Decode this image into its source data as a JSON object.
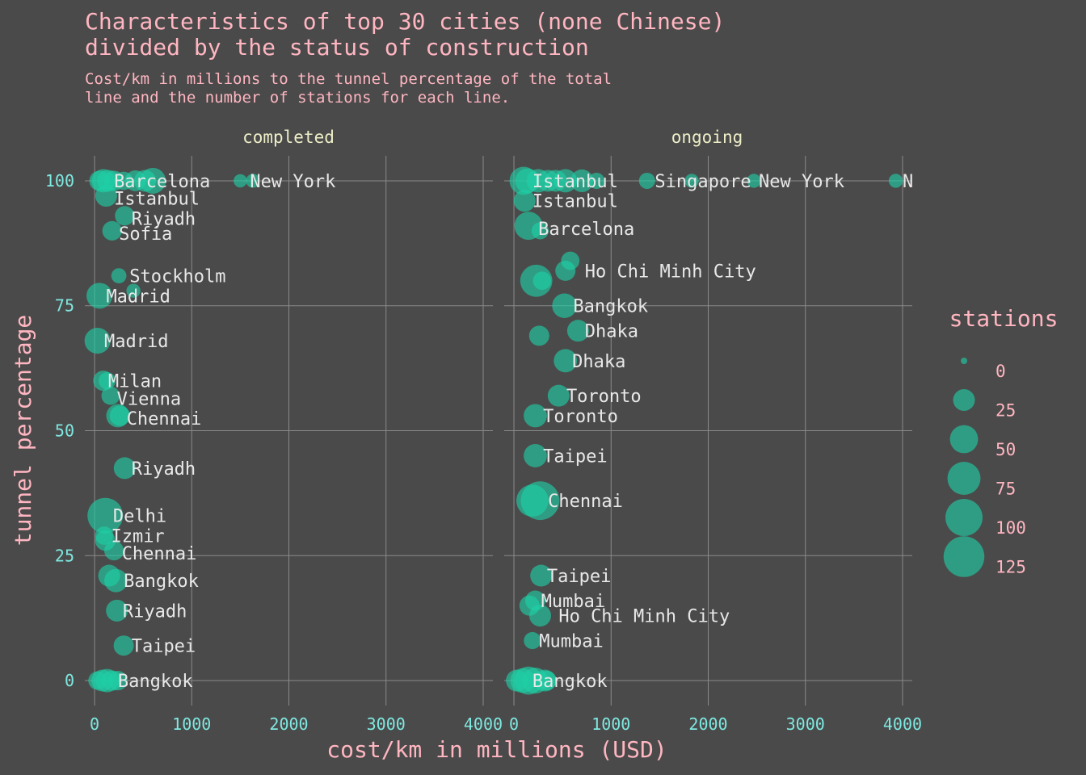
{
  "chart_data": {
    "type": "scatter",
    "title": "Characteristics of top 30 cities (none Chinese) divided by the status of construction",
    "title_lines": [
      "Characteristics of top 30 cities (none Chinese)",
      "divided by the status of construction"
    ],
    "subtitle_lines": [
      "Cost/km in millions to the tunnel percentage of the total",
      "line and the number of stations for each line."
    ],
    "xlabel": "cost/km in millions (USD)",
    "ylabel": "tunnel percentage",
    "xlim": [
      -100,
      4100
    ],
    "ylim": [
      -5,
      105
    ],
    "x_ticks": [
      0,
      1000,
      2000,
      3000,
      4000
    ],
    "y_ticks": [
      0,
      25,
      50,
      75,
      100
    ],
    "grid": true,
    "legend": {
      "title": "stations",
      "position": "right",
      "values": [
        0,
        25,
        50,
        75,
        100,
        125
      ]
    },
    "point_color": "#1fd1a6",
    "panels": [
      {
        "name": "completed",
        "points": [
          {
            "x": 50,
            "y": 100,
            "s": 20
          },
          {
            "x": 90,
            "y": 100,
            "s": 30
          },
          {
            "x": 140,
            "y": 100,
            "s": 25
          },
          {
            "x": 200,
            "y": 100,
            "s": 20
          },
          {
            "x": 300,
            "y": 100,
            "s": 15
          },
          {
            "x": 420,
            "y": 100,
            "s": 22
          },
          {
            "x": 520,
            "y": 100,
            "s": 25
          },
          {
            "x": 600,
            "y": 100,
            "s": 40
          },
          {
            "x": 1500,
            "y": 100,
            "s": 5
          },
          {
            "x": 1630,
            "y": 100,
            "s": 6
          },
          {
            "x": 120,
            "y": 97,
            "s": 25
          },
          {
            "x": 310,
            "y": 93,
            "s": 18
          },
          {
            "x": 180,
            "y": 90,
            "s": 18
          },
          {
            "x": 250,
            "y": 81,
            "s": 8
          },
          {
            "x": 400,
            "y": 78,
            "s": 6
          },
          {
            "x": 50,
            "y": 77,
            "s": 40
          },
          {
            "x": 30,
            "y": 68,
            "s": 40
          },
          {
            "x": 90,
            "y": 60,
            "s": 20
          },
          {
            "x": 130,
            "y": 60,
            "s": 12
          },
          {
            "x": 165,
            "y": 57,
            "s": 15
          },
          {
            "x": 240,
            "y": 53,
            "s": 30
          },
          {
            "x": 260,
            "y": 53,
            "s": 20
          },
          {
            "x": 310,
            "y": 42.5,
            "s": 25
          },
          {
            "x": 110,
            "y": 33,
            "s": 90
          },
          {
            "x": 100,
            "y": 29,
            "s": 15
          },
          {
            "x": 110,
            "y": 28,
            "s": 20
          },
          {
            "x": 200,
            "y": 26,
            "s": 18
          },
          {
            "x": 150,
            "y": 21,
            "s": 25
          },
          {
            "x": 220,
            "y": 20,
            "s": 30
          },
          {
            "x": 230,
            "y": 14,
            "s": 25
          },
          {
            "x": 300,
            "y": 7,
            "s": 20
          },
          {
            "x": 30,
            "y": 0,
            "s": 15
          },
          {
            "x": 80,
            "y": 0,
            "s": 25
          },
          {
            "x": 130,
            "y": 0,
            "s": 30
          },
          {
            "x": 180,
            "y": 0,
            "s": 20
          },
          {
            "x": 240,
            "y": 0,
            "s": 18
          }
        ],
        "labels": [
          {
            "text": "Barcelona",
            "x": 200,
            "y": 100
          },
          {
            "text": "New York",
            "x": 1600,
            "y": 100
          },
          {
            "text": "Istanbul",
            "x": 200,
            "y": 96.5
          },
          {
            "text": "Riyadh",
            "x": 380,
            "y": 92.5
          },
          {
            "text": "Sofia",
            "x": 250,
            "y": 89.5
          },
          {
            "text": "Stockholm",
            "x": 360,
            "y": 81
          },
          {
            "text": "Madrid",
            "x": 120,
            "y": 77
          },
          {
            "text": "Madrid",
            "x": 100,
            "y": 68
          },
          {
            "text": "Milan",
            "x": 140,
            "y": 60
          },
          {
            "text": "Vienna",
            "x": 230,
            "y": 56.5
          },
          {
            "text": "Chennai",
            "x": 330,
            "y": 52.5
          },
          {
            "text": "Riyadh",
            "x": 380,
            "y": 42.5
          },
          {
            "text": "Delhi",
            "x": 190,
            "y": 33
          },
          {
            "text": "Izmir",
            "x": 170,
            "y": 29
          },
          {
            "text": "Chennai",
            "x": 280,
            "y": 25.5
          },
          {
            "text": "Bangkok",
            "x": 300,
            "y": 20
          },
          {
            "text": "Riyadh",
            "x": 290,
            "y": 14
          },
          {
            "text": "Taipei",
            "x": 380,
            "y": 7
          },
          {
            "text": "Bangkok",
            "x": 240,
            "y": 0
          }
        ]
      },
      {
        "name": "ongoing",
        "points": [
          {
            "x": 100,
            "y": 100,
            "s": 50
          },
          {
            "x": 140,
            "y": 100,
            "s": 35
          },
          {
            "x": 250,
            "y": 100,
            "s": 30
          },
          {
            "x": 350,
            "y": 100,
            "s": 25
          },
          {
            "x": 430,
            "y": 100,
            "s": 25
          },
          {
            "x": 530,
            "y": 100,
            "s": 30
          },
          {
            "x": 700,
            "y": 100,
            "s": 28
          },
          {
            "x": 850,
            "y": 100,
            "s": 10
          },
          {
            "x": 1370,
            "y": 100,
            "s": 10
          },
          {
            "x": 1830,
            "y": 100,
            "s": 6
          },
          {
            "x": 2470,
            "y": 100,
            "s": 6
          },
          {
            "x": 3930,
            "y": 100,
            "s": 6
          },
          {
            "x": 110,
            "y": 96,
            "s": 25
          },
          {
            "x": 150,
            "y": 91,
            "s": 50
          },
          {
            "x": 270,
            "y": 90,
            "s": 12
          },
          {
            "x": 580,
            "y": 84,
            "s": 15
          },
          {
            "x": 530,
            "y": 82,
            "s": 20
          },
          {
            "x": 230,
            "y": 80,
            "s": 70
          },
          {
            "x": 290,
            "y": 80,
            "s": 15
          },
          {
            "x": 520,
            "y": 75,
            "s": 35
          },
          {
            "x": 660,
            "y": 70,
            "s": 25
          },
          {
            "x": 260,
            "y": 69,
            "s": 20
          },
          {
            "x": 530,
            "y": 64,
            "s": 30
          },
          {
            "x": 460,
            "y": 57,
            "s": 25
          },
          {
            "x": 220,
            "y": 53,
            "s": 30
          },
          {
            "x": 220,
            "y": 45,
            "s": 30
          },
          {
            "x": 190,
            "y": 36,
            "s": 70
          },
          {
            "x": 270,
            "y": 36,
            "s": 110
          },
          {
            "x": 280,
            "y": 21,
            "s": 25
          },
          {
            "x": 220,
            "y": 16,
            "s": 20
          },
          {
            "x": 160,
            "y": 15,
            "s": 20
          },
          {
            "x": 270,
            "y": 13,
            "s": 25
          },
          {
            "x": 190,
            "y": 8,
            "s": 12
          },
          {
            "x": 30,
            "y": 0,
            "s": 25
          },
          {
            "x": 90,
            "y": 0,
            "s": 35
          },
          {
            "x": 150,
            "y": 0,
            "s": 50
          },
          {
            "x": 220,
            "y": 0,
            "s": 40
          },
          {
            "x": 320,
            "y": 0,
            "s": 25
          },
          {
            "x": 340,
            "y": 0,
            "s": 18
          }
        ],
        "labels": [
          {
            "text": "Istanbul",
            "x": 190,
            "y": 100
          },
          {
            "text": "Singapore",
            "x": 1450,
            "y": 100
          },
          {
            "text": "New York",
            "x": 2520,
            "y": 100
          },
          {
            "text": "N",
            "x": 4000,
            "y": 100
          },
          {
            "text": "Istanbul",
            "x": 190,
            "y": 96
          },
          {
            "text": "Barcelona",
            "x": 250,
            "y": 90.5
          },
          {
            "text": "Ho Chi Minh City",
            "x": 730,
            "y": 82
          },
          {
            "text": "Bangkok",
            "x": 610,
            "y": 75
          },
          {
            "text": "Dhaka",
            "x": 730,
            "y": 70
          },
          {
            "text": "Dhaka",
            "x": 600,
            "y": 64
          },
          {
            "text": "Toronto",
            "x": 540,
            "y": 57
          },
          {
            "text": "Toronto",
            "x": 300,
            "y": 53
          },
          {
            "text": "Taipei",
            "x": 300,
            "y": 45
          },
          {
            "text": "Chennai",
            "x": 350,
            "y": 36
          },
          {
            "text": "Taipei",
            "x": 340,
            "y": 21
          },
          {
            "text": "Mumbai",
            "x": 280,
            "y": 16
          },
          {
            "text": "Ho Chi Minh City",
            "x": 460,
            "y": 13
          },
          {
            "text": "Mumbai",
            "x": 260,
            "y": 8
          },
          {
            "text": "Bangkok",
            "x": 190,
            "y": 0
          }
        ]
      }
    ]
  }
}
